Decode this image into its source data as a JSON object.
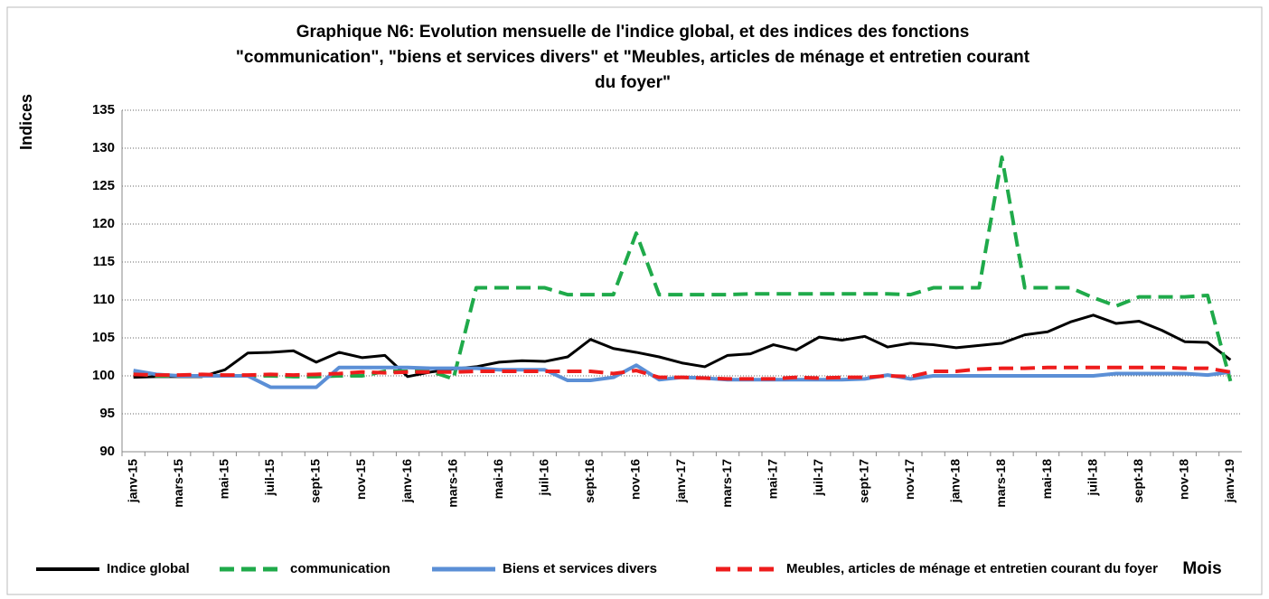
{
  "chart_data": {
    "type": "line",
    "title": [
      "Graphique N6: Evolution mensuelle de l'indice global, et des indices des fonctions",
      "\"communication\", \"biens et services divers\" et \"Meubles, articles de ménage et entretien courant",
      "du foyer\""
    ],
    "y_label": "Indices",
    "x_label": "Mois",
    "categories": [
      "janv-15",
      null,
      "mars-15",
      null,
      "mai-15",
      null,
      "juil-15",
      null,
      "sept-15",
      null,
      "nov-15",
      null,
      "janv-16",
      null,
      "mars-16",
      null,
      "mai-16",
      null,
      "juil-16",
      null,
      "sept-16",
      null,
      "nov-16",
      null,
      "janv-17",
      null,
      "mars-17",
      null,
      "mai-17",
      null,
      "juil-17",
      null,
      "sept-17",
      null,
      "nov-17",
      null,
      "janv-18",
      null,
      "mars-18",
      null,
      "mai-18",
      null,
      "juil-18",
      null,
      "sept-18",
      null,
      "nov-18",
      null,
      "janv-19"
    ],
    "ylim": [
      90,
      135
    ],
    "yticks": [
      90,
      95,
      100,
      105,
      110,
      115,
      120,
      125,
      130,
      135
    ],
    "grid": true,
    "legend": "bottom",
    "series": [
      {
        "name": "Indice global",
        "color": "#000000",
        "dashed": false,
        "values": [
          99.8,
          99.9,
          99.9,
          99.9,
          100.8,
          103.0,
          103.1,
          103.3,
          101.8,
          103.1,
          102.4,
          102.7,
          99.9,
          100.5,
          100.9,
          101.2,
          101.8,
          102.0,
          101.9,
          102.5,
          104.8,
          103.6,
          103.1,
          102.5,
          101.7,
          101.2,
          102.7,
          102.9,
          104.1,
          103.4,
          105.1,
          104.7,
          105.2,
          103.8,
          104.3,
          104.1,
          103.7,
          104.0,
          104.3,
          105.4,
          105.8,
          107.1,
          108.0,
          106.9,
          107.2,
          106.0,
          104.5,
          104.4,
          102.1
        ]
      },
      {
        "name": "communication",
        "color": "#1faa4a",
        "dashed": true,
        "values": [
          100.3,
          100.0,
          100.0,
          100.0,
          100.0,
          100.0,
          100.0,
          99.9,
          99.9,
          100.0,
          100.0,
          100.6,
          100.6,
          100.6,
          99.6,
          111.6,
          111.6,
          111.6,
          111.6,
          110.7,
          110.7,
          110.7,
          118.8,
          110.7,
          110.7,
          110.7,
          110.7,
          110.8,
          110.8,
          110.8,
          110.8,
          110.8,
          110.8,
          110.8,
          110.7,
          111.6,
          111.6,
          111.6,
          128.8,
          111.6,
          111.6,
          111.6,
          110.3,
          109.2,
          110.4,
          110.4,
          110.4,
          110.6,
          99.3
        ]
      },
      {
        "name": "Biens et services divers",
        "color": "#5b8fd6",
        "dashed": false,
        "values": [
          100.7,
          100.2,
          100.0,
          100.0,
          100.0,
          100.0,
          98.5,
          98.5,
          98.5,
          101.1,
          101.1,
          101.1,
          101.1,
          101.0,
          101.0,
          101.0,
          100.8,
          100.8,
          100.8,
          99.4,
          99.4,
          99.8,
          101.4,
          99.5,
          99.8,
          99.7,
          99.5,
          99.5,
          99.5,
          99.5,
          99.5,
          99.5,
          99.6,
          100.1,
          99.6,
          100.0,
          100.0,
          100.0,
          100.0,
          100.0,
          100.0,
          100.0,
          100.0,
          100.3,
          100.3,
          100.3,
          100.3,
          100.1,
          100.5
        ]
      },
      {
        "name": "Meubles, articles de ménage et entretien courant du foyer",
        "color": "#ee1c1c",
        "dashed": true,
        "values": [
          100.2,
          100.1,
          100.1,
          100.2,
          100.1,
          100.1,
          100.2,
          100.1,
          100.2,
          100.3,
          100.5,
          100.4,
          100.5,
          100.5,
          100.5,
          100.6,
          100.6,
          100.6,
          100.6,
          100.6,
          100.6,
          100.3,
          100.7,
          99.8,
          99.8,
          99.7,
          99.6,
          99.6,
          99.6,
          99.8,
          99.7,
          99.8,
          99.8,
          100.0,
          99.9,
          100.6,
          100.6,
          100.9,
          101.0,
          101.0,
          101.1,
          101.1,
          101.1,
          101.1,
          101.1,
          101.1,
          101.0,
          101.0,
          100.5
        ]
      }
    ]
  }
}
